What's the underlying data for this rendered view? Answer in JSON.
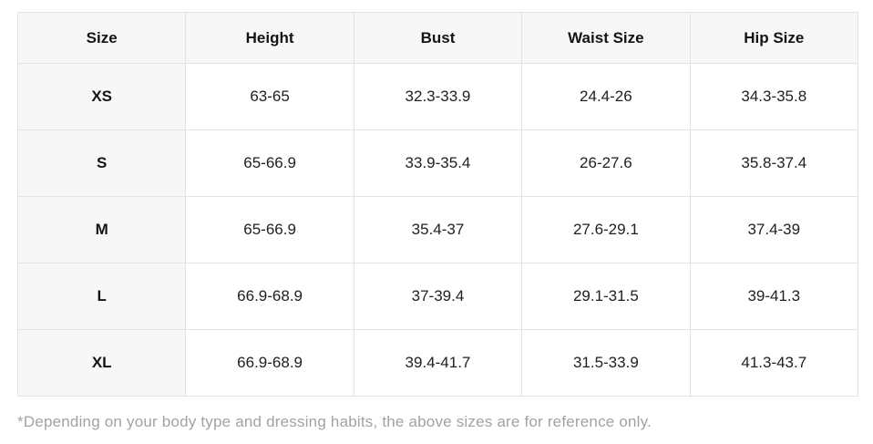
{
  "table": {
    "columns": {
      "size": "Size",
      "height": "Height",
      "bust": "Bust",
      "waist": "Waist Size",
      "hip": "Hip Size"
    },
    "rows": [
      {
        "size": "XS",
        "height": "63-65",
        "bust": "32.3-33.9",
        "waist": "24.4-26",
        "hip": "34.3-35.8"
      },
      {
        "size": "S",
        "height": "65-66.9",
        "bust": "33.9-35.4",
        "waist": "26-27.6",
        "hip": "35.8-37.4"
      },
      {
        "size": "M",
        "height": "65-66.9",
        "bust": "35.4-37",
        "waist": "27.6-29.1",
        "hip": "37.4-39"
      },
      {
        "size": "L",
        "height": "66.9-68.9",
        "bust": "37-39.4",
        "waist": "29.1-31.5",
        "hip": "39-41.3"
      },
      {
        "size": "XL",
        "height": "66.9-68.9",
        "bust": "39.4-41.7",
        "waist": "31.5-33.9",
        "hip": "41.3-43.7"
      }
    ]
  },
  "footnote": "*Depending on your body type and dressing habits, the above sizes are for reference only.",
  "colors": {
    "header_bg": "#f7f7f7",
    "border": "#e3e3e3",
    "text": "#212121",
    "footnote_text": "#a2a2a2"
  }
}
